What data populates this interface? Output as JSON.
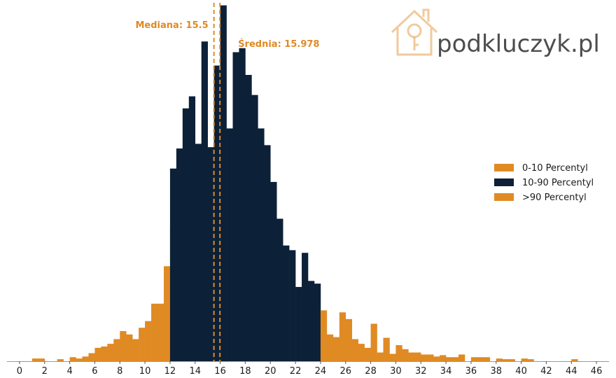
{
  "chart_data": {
    "type": "bar",
    "title": "",
    "xlabel": "",
    "ylabel": "",
    "xlim": [
      -1,
      47
    ],
    "ylim": [
      0,
      540
    ],
    "xticks": [
      0,
      2,
      4,
      6,
      8,
      10,
      12,
      14,
      16,
      18,
      20,
      22,
      24,
      26,
      28,
      30,
      32,
      34,
      36,
      38,
      40,
      42,
      44,
      46
    ],
    "x_tick_labels": [
      "0",
      "2",
      "4",
      "6",
      "8",
      "10",
      "12",
      "14",
      "16",
      "18",
      "20",
      "22",
      "24",
      "26",
      "28",
      "30",
      "32",
      "34",
      "36",
      "38",
      "40",
      "42",
      "44",
      "46"
    ],
    "grid": false,
    "legend_position": "center-right",
    "bin_width": 0.5,
    "series": [
      {
        "name": "0-10 Percentyl",
        "color": "#e08a24",
        "bins": [
          {
            "x": 1.0,
            "y": 4
          },
          {
            "x": 1.5,
            "y": 4
          },
          {
            "x": 3.0,
            "y": 3
          },
          {
            "x": 4.0,
            "y": 6
          },
          {
            "x": 4.5,
            "y": 4
          },
          {
            "x": 5.0,
            "y": 7
          },
          {
            "x": 5.5,
            "y": 12
          },
          {
            "x": 6.0,
            "y": 20
          },
          {
            "x": 6.5,
            "y": 22
          },
          {
            "x": 7.0,
            "y": 26
          },
          {
            "x": 7.5,
            "y": 33
          },
          {
            "x": 8.0,
            "y": 45
          },
          {
            "x": 8.5,
            "y": 40
          },
          {
            "x": 9.0,
            "y": 33
          },
          {
            "x": 9.5,
            "y": 50
          },
          {
            "x": 10.0,
            "y": 60
          },
          {
            "x": 10.5,
            "y": 86
          },
          {
            "x": 11.0,
            "y": 86
          },
          {
            "x": 11.5,
            "y": 142
          },
          {
            "x": 12.0,
            "y": 198
          }
        ]
      },
      {
        "name": "10-90 Percentyl",
        "color": "#0c2138",
        "bins": [
          {
            "x": 12.0,
            "y": 288
          },
          {
            "x": 12.5,
            "y": 318
          },
          {
            "x": 13.0,
            "y": 378
          },
          {
            "x": 13.5,
            "y": 396
          },
          {
            "x": 14.0,
            "y": 325
          },
          {
            "x": 14.5,
            "y": 478
          },
          {
            "x": 15.0,
            "y": 320
          },
          {
            "x": 15.5,
            "y": 442
          },
          {
            "x": 16.0,
            "y": 532
          },
          {
            "x": 16.5,
            "y": 348
          },
          {
            "x": 17.0,
            "y": 462
          },
          {
            "x": 17.5,
            "y": 468
          },
          {
            "x": 18.0,
            "y": 428
          },
          {
            "x": 18.5,
            "y": 398
          },
          {
            "x": 19.0,
            "y": 348
          },
          {
            "x": 19.5,
            "y": 323
          },
          {
            "x": 20.0,
            "y": 268
          },
          {
            "x": 20.5,
            "y": 213
          },
          {
            "x": 21.0,
            "y": 173
          },
          {
            "x": 21.5,
            "y": 166
          },
          {
            "x": 22.0,
            "y": 111
          },
          {
            "x": 22.5,
            "y": 162
          },
          {
            "x": 23.0,
            "y": 120
          },
          {
            "x": 23.5,
            "y": 116
          }
        ]
      },
      {
        "name": ">90 Percentyl",
        "color": "#e08a24",
        "bins": [
          {
            "x": 24.0,
            "y": 76
          },
          {
            "x": 24.5,
            "y": 40
          },
          {
            "x": 25.0,
            "y": 36
          },
          {
            "x": 25.5,
            "y": 73
          },
          {
            "x": 26.0,
            "y": 63
          },
          {
            "x": 26.5,
            "y": 33
          },
          {
            "x": 27.0,
            "y": 26
          },
          {
            "x": 27.5,
            "y": 20
          },
          {
            "x": 28.0,
            "y": 56
          },
          {
            "x": 28.5,
            "y": 13
          },
          {
            "x": 29.0,
            "y": 35
          },
          {
            "x": 29.5,
            "y": 11
          },
          {
            "x": 30.0,
            "y": 24
          },
          {
            "x": 30.5,
            "y": 18
          },
          {
            "x": 31.0,
            "y": 13
          },
          {
            "x": 31.5,
            "y": 13
          },
          {
            "x": 32.0,
            "y": 10
          },
          {
            "x": 32.5,
            "y": 10
          },
          {
            "x": 33.0,
            "y": 7
          },
          {
            "x": 33.5,
            "y": 9
          },
          {
            "x": 34.0,
            "y": 6
          },
          {
            "x": 34.5,
            "y": 6
          },
          {
            "x": 35.0,
            "y": 10
          },
          {
            "x": 36.0,
            "y": 6
          },
          {
            "x": 36.5,
            "y": 6
          },
          {
            "x": 37.0,
            "y": 6
          },
          {
            "x": 38.0,
            "y": 4
          },
          {
            "x": 38.5,
            "y": 3
          },
          {
            "x": 39.0,
            "y": 3
          },
          {
            "x": 40.0,
            "y": 4
          },
          {
            "x": 40.5,
            "y": 3
          },
          {
            "x": 44.0,
            "y": 3
          }
        ]
      }
    ],
    "annotations": [
      {
        "label": "Mediana: 15.5",
        "x": 15.5,
        "color": "#e08a24",
        "style": "dashed"
      },
      {
        "label": "Średnia: 15.978",
        "x": 15.978,
        "color": "#e08a24",
        "style": "dashed"
      }
    ]
  },
  "watermark": {
    "text": "podkluczyk.pl",
    "icon": "house-key-icon",
    "color": "#e08a24"
  }
}
